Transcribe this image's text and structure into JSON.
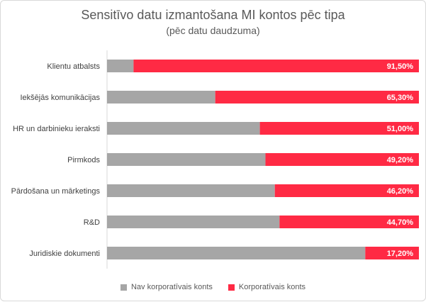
{
  "chart_data": {
    "type": "bar",
    "orientation": "horizontal",
    "stacked": true,
    "percent_scale": true,
    "title": "Sensitīvo datu izmantošana MI kontos pēc tipa",
    "subtitle": "(pēc datu daudzuma)",
    "categories": [
      "Klientu atbalsts",
      "Iekšējās komunikācijas",
      "HR un darbinieku ieraksti",
      "Pirmkods",
      "Pārdošana un mārketings",
      "R&D",
      "Juridiskie dokumenti"
    ],
    "series": [
      {
        "name": "Nav korporatīvais konts",
        "color": "#a6a6a6",
        "values": [
          8.5,
          34.7,
          49.0,
          50.8,
          53.8,
          55.3,
          82.8
        ]
      },
      {
        "name": "Korporatīvais konts",
        "color": "#ff2a44",
        "values": [
          91.5,
          65.3,
          51.0,
          49.2,
          46.2,
          44.7,
          17.2
        ],
        "labels": [
          "91,50%",
          "65,30%",
          "51,00%",
          "49,20%",
          "46,20%",
          "44,70%",
          "17,20%"
        ]
      }
    ],
    "xlim": [
      0,
      100
    ],
    "grid": false,
    "legend": "bottom"
  },
  "legend": {
    "items": [
      {
        "label": "Nav korporatīvais konts",
        "color": "#a6a6a6"
      },
      {
        "label": "Korporatīvais konts",
        "color": "#ff2a44"
      }
    ]
  }
}
